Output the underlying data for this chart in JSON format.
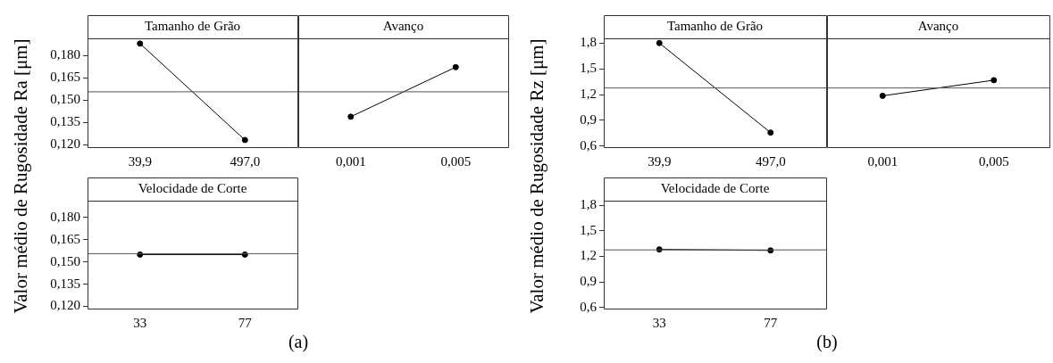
{
  "chart_data": [
    {
      "type": "line",
      "title": "Tamanho de Grão",
      "ylabel": "Valor médio de Rugosidade Ra [μm]",
      "categories": [
        "39,9",
        "497,0"
      ],
      "values": [
        0.1879,
        0.1233
      ],
      "color": "#000000",
      "marker": "circle",
      "line_style": "solid",
      "ylim": [
        0.1185,
        0.1914
      ],
      "yticks": [
        {
          "value": 0.12,
          "label": "0,120"
        },
        {
          "value": 0.135,
          "label": "0,135"
        },
        {
          "value": 0.15,
          "label": "0,150"
        },
        {
          "value": 0.165,
          "label": "0,165"
        },
        {
          "value": 0.18,
          "label": "0,180"
        }
      ],
      "ref_lines": [
        {
          "axis": "y",
          "value": 0.1556,
          "color": "#555555"
        }
      ],
      "grid": false,
      "legend": false
    },
    {
      "type": "line",
      "title": "Avanço",
      "categories": [
        "0,001",
        "0,005"
      ],
      "values": [
        0.1389,
        0.1721
      ],
      "color": "#000000",
      "marker": "circle",
      "line_style": "solid",
      "ylim": [
        0.1185,
        0.1914
      ],
      "tick_labels": "x",
      "ref_lines": [
        {
          "axis": "y",
          "value": 0.1556,
          "color": "#555555"
        }
      ],
      "grid": false,
      "legend": false
    },
    {
      "type": "line",
      "title": "Velocidade de Corte",
      "categories": [
        "33",
        "77"
      ],
      "values": [
        0.155,
        0.155
      ],
      "color": "#000000",
      "marker": "circle",
      "line_style": "solid",
      "ylim": [
        0.1185,
        0.1914
      ],
      "yticks": [
        {
          "value": 0.12,
          "label": "0,120"
        },
        {
          "value": 0.135,
          "label": "0,135"
        },
        {
          "value": 0.15,
          "label": "0,150"
        },
        {
          "value": 0.165,
          "label": "0,165"
        },
        {
          "value": 0.18,
          "label": "0,180"
        }
      ],
      "ref_lines": [
        {
          "axis": "y",
          "value": 0.1556,
          "color": "#555555"
        }
      ],
      "annotations": [
        "(a)"
      ],
      "grid": false,
      "legend": false
    },
    {
      "type": "line",
      "title": "Tamanho de Grão",
      "ylabel": "Valor médio de Rugosidade Rz [μm]",
      "categories": [
        "39,9",
        "497,0"
      ],
      "values": [
        1.8,
        0.758
      ],
      "color": "#000000",
      "marker": "circle",
      "line_style": "solid",
      "ylim": [
        0.588,
        1.855
      ],
      "yticks": [
        {
          "value": 0.6,
          "label": "0,6"
        },
        {
          "value": 0.9,
          "label": "0,9"
        },
        {
          "value": 1.2,
          "label": "1,2"
        },
        {
          "value": 1.5,
          "label": "1,5"
        },
        {
          "value": 1.8,
          "label": "1,8"
        }
      ],
      "ref_lines": [
        {
          "axis": "y",
          "value": 1.277,
          "color": "#555555"
        }
      ],
      "grid": false,
      "legend": false
    },
    {
      "type": "line",
      "title": "Avanço",
      "categories": [
        "0,001",
        "0,005"
      ],
      "values": [
        1.186,
        1.368
      ],
      "color": "#000000",
      "marker": "circle",
      "line_style": "solid",
      "ylim": [
        0.588,
        1.855
      ],
      "tick_labels": "x",
      "ref_lines": [
        {
          "axis": "y",
          "value": 1.277,
          "color": "#555555"
        }
      ],
      "grid": false,
      "legend": false
    },
    {
      "type": "line",
      "title": "Velocidade de Corte",
      "categories": [
        "33",
        "77"
      ],
      "values": [
        1.283,
        1.271
      ],
      "color": "#000000",
      "marker": "circle",
      "line_style": "solid",
      "ylim": [
        0.588,
        1.855
      ],
      "yticks": [
        {
          "value": 0.6,
          "label": "0,6"
        },
        {
          "value": 0.9,
          "label": "0,9"
        },
        {
          "value": 1.2,
          "label": "1,2"
        },
        {
          "value": 1.5,
          "label": "1,5"
        },
        {
          "value": 1.8,
          "label": "1,8"
        }
      ],
      "ref_lines": [
        {
          "axis": "y",
          "value": 1.277,
          "color": "#555555"
        }
      ],
      "annotations": [
        "(b)"
      ],
      "grid": false,
      "legend": false
    }
  ]
}
